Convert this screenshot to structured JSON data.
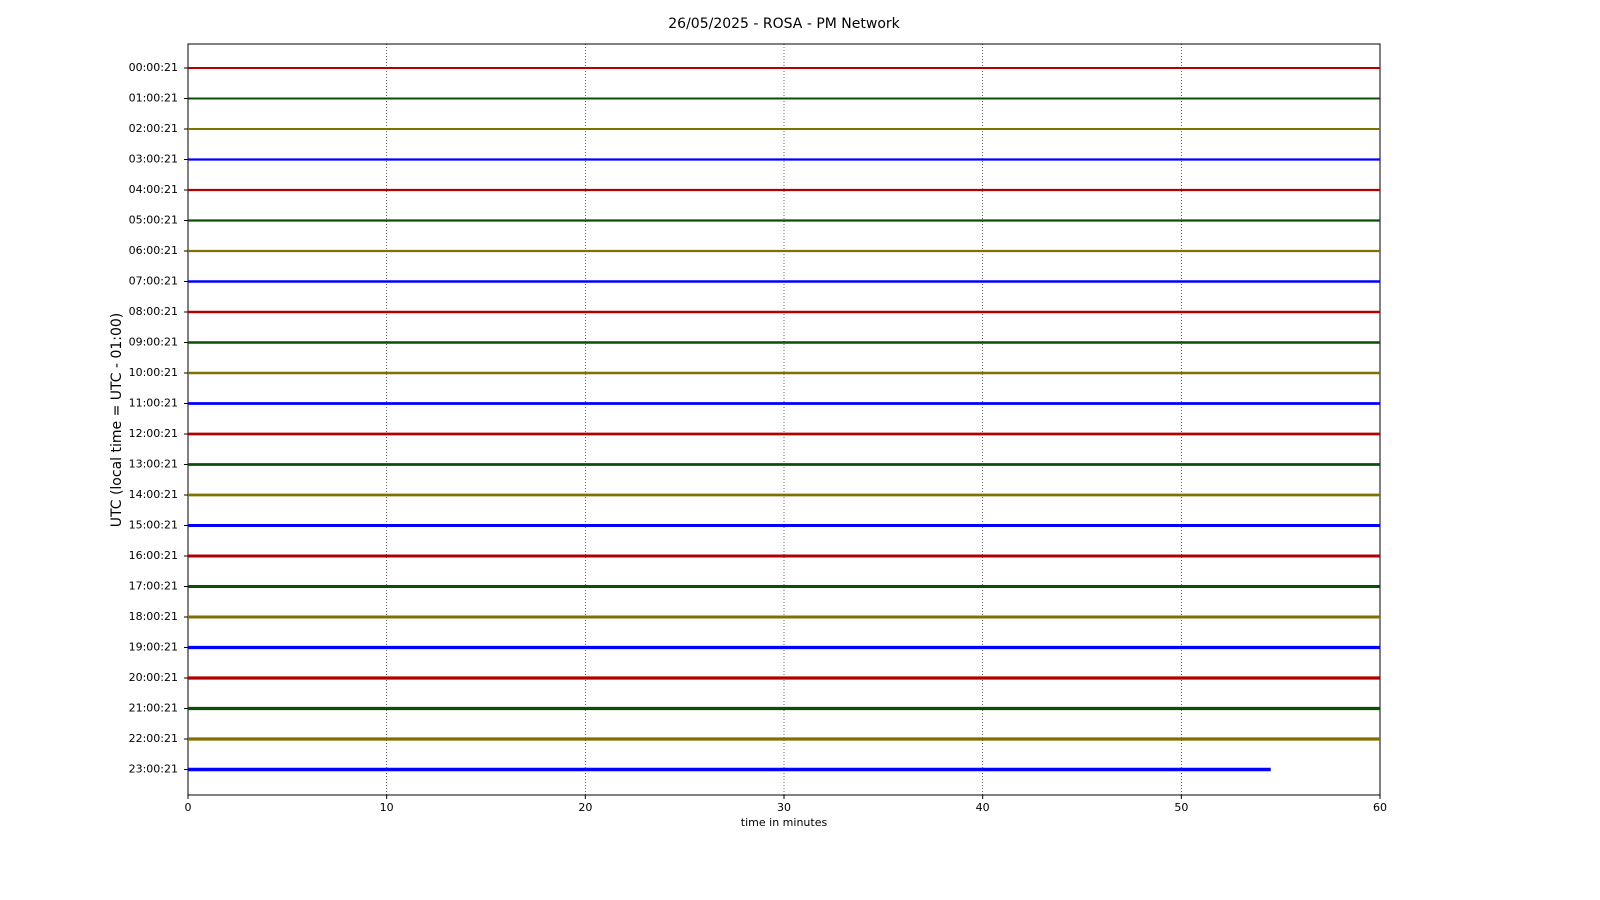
{
  "chart_data": {
    "type": "helicorder",
    "title": "26/05/2025 - ROSA - PM Network",
    "xlabel": "time in minutes",
    "ylabel": "UTC (local time = UTC - 01:00)",
    "xlim": [
      0,
      60
    ],
    "xticks": [
      0,
      10,
      20,
      30,
      40,
      50,
      60
    ],
    "grid": true,
    "colors": [
      "#b00000",
      "#0b4d0b",
      "#7f7000",
      "#0000ff"
    ],
    "rows": [
      "00:00:21",
      "01:00:21",
      "02:00:21",
      "03:00:21",
      "04:00:21",
      "05:00:21",
      "06:00:21",
      "07:00:21",
      "08:00:21",
      "09:00:21",
      "10:00:21",
      "11:00:21",
      "12:00:21",
      "13:00:21",
      "14:00:21",
      "15:00:21",
      "16:00:21",
      "17:00:21",
      "18:00:21",
      "19:00:21",
      "20:00:21",
      "21:00:21",
      "22:00:21",
      "23:00:21"
    ],
    "ends": [
      60,
      60,
      60,
      60,
      60,
      60,
      60,
      60,
      60,
      60,
      60,
      60,
      60,
      60,
      60,
      60,
      60,
      60,
      60,
      60,
      60,
      60,
      60,
      54.5
    ]
  }
}
